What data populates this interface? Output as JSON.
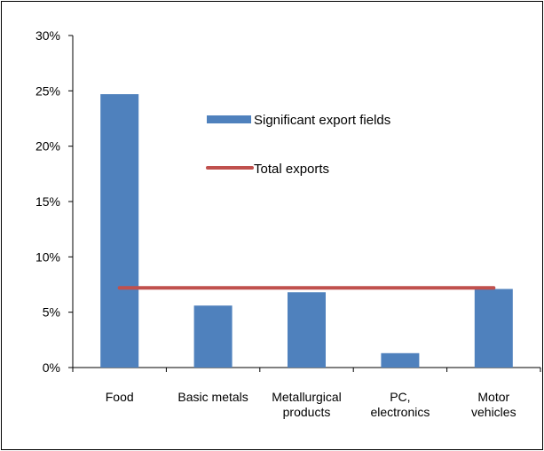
{
  "chart_data": {
    "type": "bar",
    "title": "",
    "xlabel": "",
    "ylabel": "",
    "ylim": [
      0,
      30
    ],
    "y_ticks": [
      "0%",
      "5%",
      "10%",
      "15%",
      "20%",
      "25%",
      "30%"
    ],
    "categories": [
      [
        "Food"
      ],
      [
        "Basic metals"
      ],
      [
        "Metallurgical",
        "products"
      ],
      [
        "PC,",
        "electronics"
      ],
      [
        "Motor",
        "vehicles"
      ]
    ],
    "series": [
      {
        "name": "Significant export fields",
        "type": "bar",
        "color": "#4f81bd",
        "values": [
          24.7,
          5.6,
          6.8,
          1.3,
          7.1
        ]
      },
      {
        "name": "Total exports",
        "type": "line",
        "color": "#c0504d",
        "values": [
          7.2,
          7.2,
          7.2,
          7.2,
          7.2
        ]
      }
    ],
    "grid": false,
    "legend": "inside top-center"
  }
}
